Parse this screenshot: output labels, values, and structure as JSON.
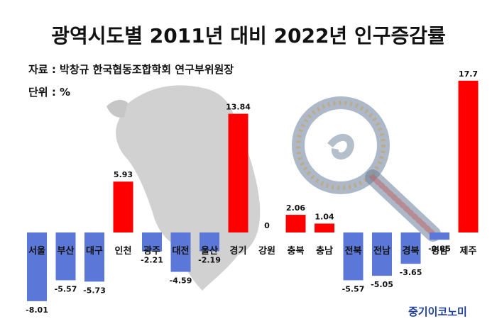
{
  "chart_data": {
    "type": "bar",
    "title": "광역시도별 2011년 대비 2022년 인구증감률",
    "source": "자료 : 박창규 한국협동조합학회 연구부위원장",
    "unit": "단위 : %",
    "categories": [
      "서울",
      "부산",
      "대구",
      "인천",
      "광주",
      "대전",
      "울산",
      "경기",
      "강원",
      "충북",
      "충남",
      "전북",
      "전남",
      "경북",
      "경남",
      "제주"
    ],
    "values": [
      -8.01,
      -5.57,
      -5.73,
      5.93,
      -2.21,
      -4.59,
      -2.19,
      13.84,
      0,
      2.06,
      1.04,
      -5.57,
      -5.05,
      -3.65,
      -0.85,
      17.7
    ],
    "value_labels": [
      "-8.01",
      "-5.57",
      "-5.73",
      "5.93",
      "-2.21",
      "-4.59",
      "-2.19",
      "13.84",
      "0",
      "2.06",
      "1.04",
      "-5.57",
      "-5.05",
      "-3.65",
      "-0.85",
      "17.7"
    ],
    "colors": {
      "positive": "#ff0000",
      "negative": "#5b78d8"
    }
  },
  "brand": {
    "text": "중기이코노미",
    "color": "#1f3f9a"
  },
  "decor": {
    "left_image": "korea-map-crowd",
    "right_image": "magnifier-crowd"
  }
}
